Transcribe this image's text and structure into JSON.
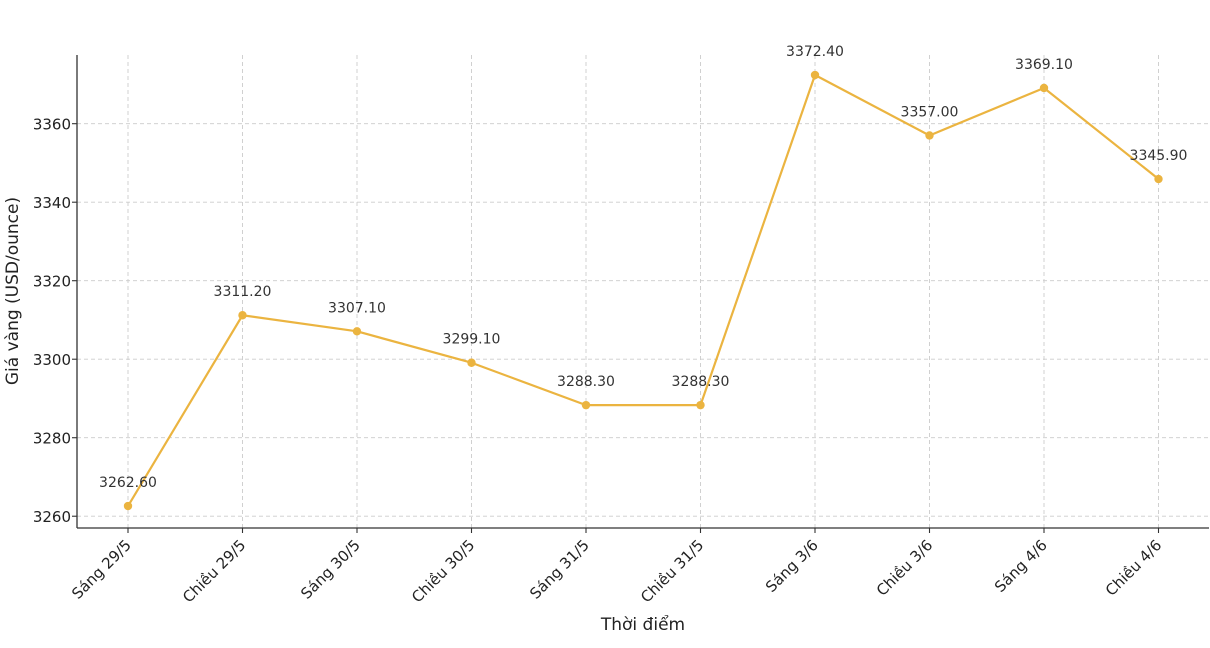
{
  "chart_data": {
    "type": "line",
    "title": "",
    "xlabel": "Thời điểm",
    "ylabel": "Giá vàng (USD/ounce)",
    "categories": [
      "Sáng 29/5",
      "Chiều 29/5",
      "Sáng 30/5",
      "Chiều 30/5",
      "Sáng 31/5",
      "Chiều 31/5",
      "Sáng 3/6",
      "Chiều 3/6",
      "Sáng 4/6",
      "Chiều 4/6"
    ],
    "series": [
      {
        "values": [
          3262.6,
          3311.2,
          3307.1,
          3299.1,
          3288.3,
          3288.3,
          3372.4,
          3357.0,
          3369.1,
          3345.9
        ],
        "labels": [
          "3262.60",
          "3311.20",
          "3307.10",
          "3299.10",
          "3288.30",
          "3288.30",
          "3372.40",
          "3357.00",
          "3369.10",
          "3345.90"
        ],
        "color": "#ebb440"
      }
    ],
    "yticks": [
      "3260",
      "3280",
      "3300",
      "3320",
      "3340",
      "3360"
    ],
    "ylim": [
      3257,
      3377.5
    ],
    "grid": true,
    "legend": "none"
  }
}
